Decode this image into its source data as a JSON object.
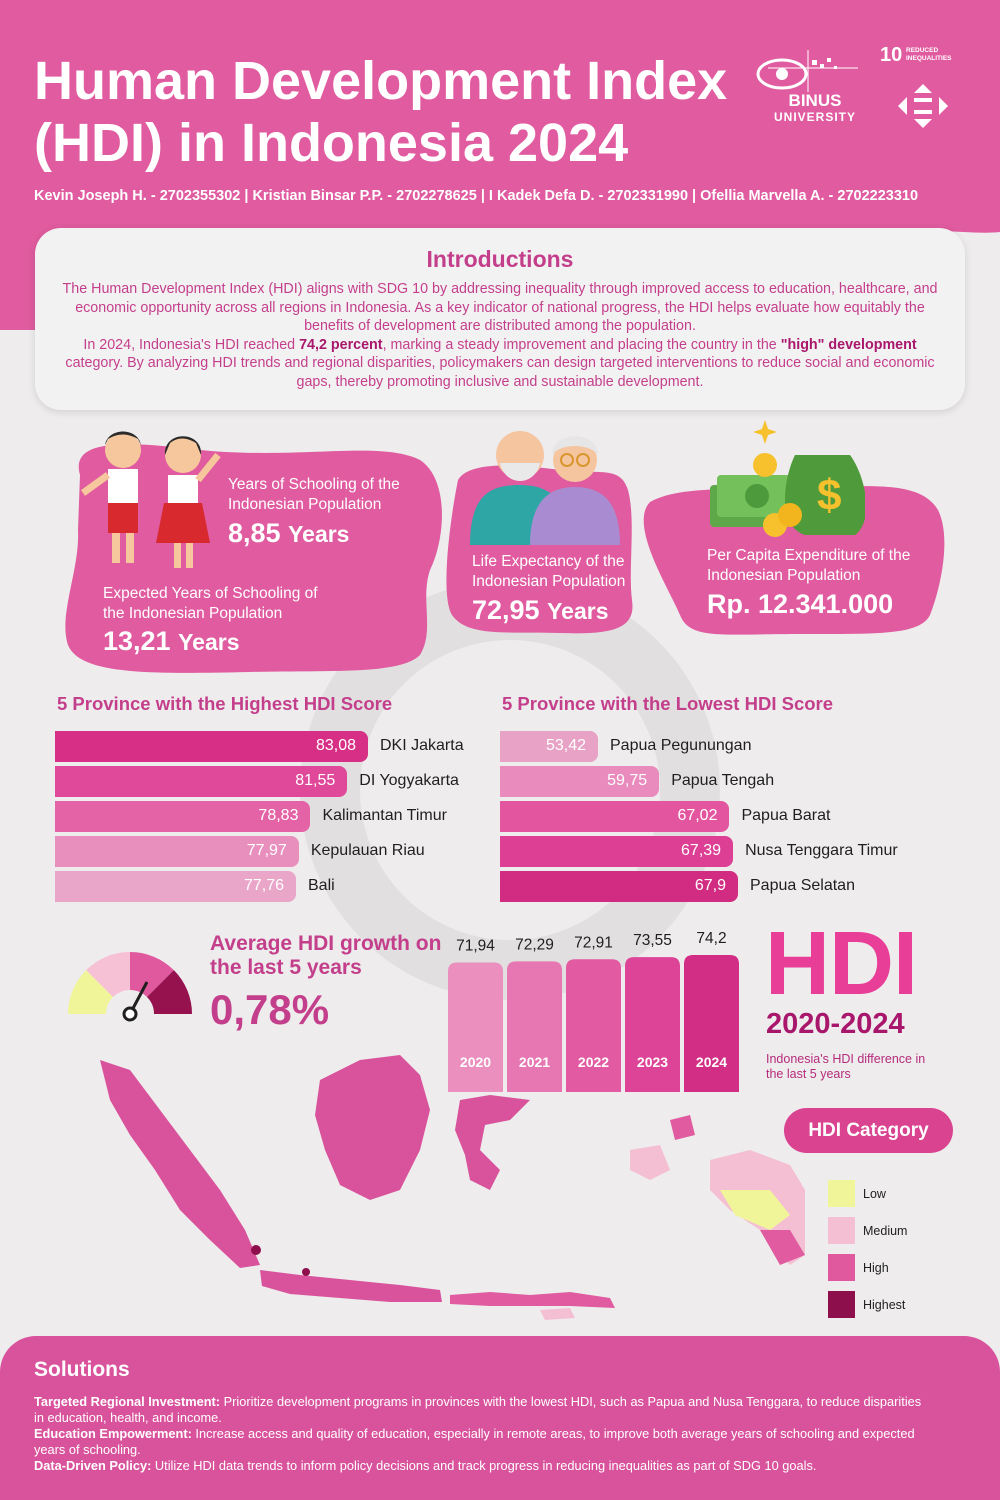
{
  "header": {
    "title_line1": "Human Development Index",
    "title_line2": "(HDI) in Indonesia 2024",
    "authors": "Kevin Joseph H. - 2702355302 | Kristian Binsar P.P. - 2702278625 | I Kadek Defa D. - 2702331990 | Ofellia Marvella A. - 2702223310",
    "logo_binus_line1": "BINUS",
    "logo_binus_line2": "UNIVERSITY",
    "sdg_number": "10",
    "sdg_title_line1": "REDUCED",
    "sdg_title_line2": "INEQUALITIES"
  },
  "intro": {
    "title": "Introductions",
    "p1": "The Human Development Index (HDI) aligns with SDG 10 by addressing inequality through improved access to education, healthcare, and economic opportunity across all regions in Indonesia. As a key indicator of national progress, the HDI helps evaluate how equitably the benefits of development are distributed among the population.",
    "p2_a": "In 2024, Indonesia's HDI reached ",
    "p2_b": "74,2 percent",
    "p2_c": ", marking a steady improvement and placing the country in the ",
    "p2_d": "\"high\" development",
    "p2_e": " category. By analyzing HDI trends and regional disparities, policymakers can design targeted interventions to reduce social and economic gaps, thereby promoting inclusive and sustainable development."
  },
  "stats": {
    "schooling_label": "Years of Schooling of the Indonesian Population",
    "schooling_value": "8,85",
    "schooling_unit": "Years",
    "expected_label": "Expected Years of Schooling of the Indonesian Population",
    "expected_value": "13,21",
    "expected_unit": "Years",
    "life_label": "Life Expectancy of the Indonesian Population",
    "life_value": "72,95",
    "life_unit": "Years",
    "expenditure_label": "Per Capita Expenditure of the Indonesian Population",
    "expenditure_value": "Rp. 12.341.000"
  },
  "growth": {
    "title": "Average HDI growth on the last 5 years",
    "value": "0,78%",
    "gauge_colors": [
      "#f0f59a",
      "#f7c1d5",
      "#e0589d",
      "#95124f"
    ]
  },
  "hdi_box": {
    "big": "HDI",
    "years": "2020-2024",
    "note": "Indonesia's HDI difference in the last 5 years"
  },
  "legend": {
    "title": "HDI Category",
    "items": [
      {
        "label": "Low",
        "color": "#f0f59a"
      },
      {
        "label": "Medium",
        "color": "#f4bfd2"
      },
      {
        "label": "High",
        "color": "#e0589d"
      },
      {
        "label": "Highest",
        "color": "#8d0f4b"
      }
    ]
  },
  "solutions": {
    "title": "Solutions",
    "s1_head": "Targeted Regional Investment:",
    "s1_body": " Prioritize development programs in provinces with the lowest HDI, such as Papua and Nusa Tenggara, to reduce disparities in education, health, and income.",
    "s2_head": "Education Empowerment:",
    "s2_body": " Increase access and quality of education, especially in remote areas, to improve both average years of schooling and expected years of schooling.",
    "s3_head": "Data-Driven Policy:",
    "s3_body": " Utilize HDI data trends to inform policy decisions and track progress in reducing inequalities as part of SDG 10 goals."
  },
  "colors": {
    "accent": "#c43f8b",
    "pink_bg": "#e05b9f",
    "card_pink": "#d9529c"
  },
  "chart_data": [
    {
      "type": "bar",
      "orientation": "horizontal",
      "title": "5 Province with the Highest HDI Score",
      "categories": [
        "DKI Jakarta",
        "DI Yogyakarta",
        "Kalimantan Timur",
        "Kepulauan Riau",
        "Bali"
      ],
      "values": [
        83.08,
        81.55,
        78.83,
        77.97,
        77.76
      ],
      "labels": [
        "83,08",
        "81,55",
        "78,83",
        "77,97",
        "77,76"
      ],
      "colors": [
        "#d72f85",
        "#e0489a",
        "#e463a6",
        "#e98fbe",
        "#eaa6c8"
      ]
    },
    {
      "type": "bar",
      "orientation": "horizontal",
      "title": "5 Province with the Lowest HDI Score",
      "categories": [
        "Papua Pegunungan",
        "Papua Tengah",
        "Papua Barat",
        "Nusa Tenggara Timur",
        "Papua Selatan"
      ],
      "values": [
        53.42,
        59.75,
        67.02,
        67.39,
        67.9
      ],
      "labels": [
        "53,42",
        "59,75",
        "67,02",
        "67,39",
        "67,9"
      ],
      "colors": [
        "#e8a2c5",
        "#e98bbd",
        "#e3559f",
        "#dc3f93",
        "#d22c82"
      ]
    },
    {
      "type": "bar",
      "orientation": "vertical",
      "categories": [
        "2020",
        "2021",
        "2022",
        "2023",
        "2024"
      ],
      "values": [
        71.94,
        72.29,
        72.91,
        73.55,
        74.2
      ],
      "labels": [
        "71,94",
        "72,29",
        "72,91",
        "73,55",
        "74,2"
      ],
      "colors": [
        "#ea8fbe",
        "#e777b2",
        "#e25aa2",
        "#dd4396",
        "#d22e86"
      ]
    }
  ]
}
